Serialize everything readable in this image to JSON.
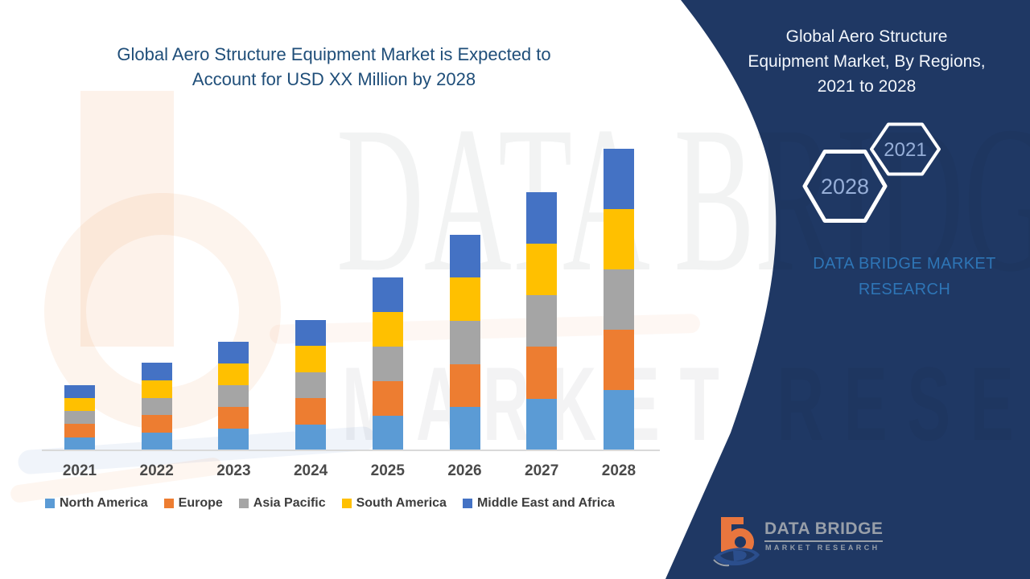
{
  "chart": {
    "title_lines": [
      "Global Aero Structure Equipment Market is Expected to",
      "Account for USD XX Million by 2028"
    ]
  },
  "chart_data": {
    "type": "bar",
    "stacked": true,
    "title": "Global Aero Structure Equipment Market is Expected to Account for USD XX Million by 2028",
    "xlabel": "",
    "ylabel": "",
    "y_axis_visible": false,
    "grid": false,
    "legend_position": "bottom",
    "values_unit": "relative height (actual USD values shown as XX)",
    "categories": [
      "2021",
      "2022",
      "2023",
      "2024",
      "2025",
      "2026",
      "2027",
      "2028"
    ],
    "series": [
      {
        "name": "North America",
        "color": "#5B9BD5",
        "values": [
          16.3,
          21.8,
          27.1,
          32.5,
          43.1,
          53.7,
          64.3,
          75.1
        ]
      },
      {
        "name": "Europe",
        "color": "#ED7D31",
        "values": [
          16.3,
          21.8,
          27.1,
          32.5,
          43.1,
          53.7,
          64.3,
          75.1
        ]
      },
      {
        "name": "Asia Pacific",
        "color": "#A5A5A5",
        "values": [
          16.3,
          21.8,
          27.1,
          32.5,
          43.1,
          53.7,
          64.3,
          75.1
        ]
      },
      {
        "name": "South America",
        "color": "#FFC000",
        "values": [
          16.3,
          21.8,
          27.1,
          32.5,
          43.1,
          53.7,
          64.3,
          75.1
        ]
      },
      {
        "name": "Middle East and Africa",
        "color": "#4472C4",
        "values": [
          16.3,
          21.8,
          27.1,
          32.5,
          43.1,
          53.7,
          64.3,
          75.1
        ]
      }
    ],
    "totals": [
      81.5,
      109.0,
      135.5,
      162.5,
      215.5,
      268.5,
      321.5,
      375.5
    ]
  },
  "panel": {
    "title_lines": [
      "Global Aero Structure",
      "Equipment Market, By Regions,",
      "2021 to 2028"
    ],
    "hexagons": [
      {
        "label": "2021"
      },
      {
        "label": "2028"
      }
    ],
    "brand_lines": [
      "DATA BRIDGE MARKET",
      "RESEARCH"
    ]
  },
  "watermark": {
    "line1": "DATA BRIDGE",
    "line2": "MARKET RESEARCH"
  },
  "footer_logo": {
    "brand": "DATA BRIDGE",
    "sub": "MARKET RESEARCH"
  },
  "colors": {
    "north_america": "#5B9BD5",
    "europe": "#ED7D31",
    "asia_pacific": "#A5A5A5",
    "south_america": "#FFC000",
    "middle_east_africa": "#4472C4",
    "panel_navy": "#1F3864",
    "title_blue": "#1F4E79",
    "panel_brand_blue": "#2E75B6",
    "hexagon_year_text": "#97AFD8"
  }
}
